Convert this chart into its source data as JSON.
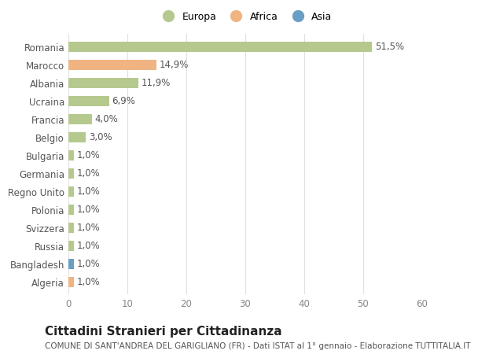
{
  "categories": [
    "Romania",
    "Marocco",
    "Albania",
    "Ucraina",
    "Francia",
    "Belgio",
    "Bulgaria",
    "Germania",
    "Regno Unito",
    "Polonia",
    "Svizzera",
    "Russia",
    "Bangladesh",
    "Algeria"
  ],
  "values": [
    51.5,
    14.9,
    11.9,
    6.9,
    4.0,
    3.0,
    1.0,
    1.0,
    1.0,
    1.0,
    1.0,
    1.0,
    1.0,
    1.0
  ],
  "labels": [
    "51,5%",
    "14,9%",
    "11,9%",
    "6,9%",
    "4,0%",
    "3,0%",
    "1,0%",
    "1,0%",
    "1,0%",
    "1,0%",
    "1,0%",
    "1,0%",
    "1,0%",
    "1,0%"
  ],
  "continents": [
    "Europa",
    "Africa",
    "Europa",
    "Europa",
    "Europa",
    "Europa",
    "Europa",
    "Europa",
    "Europa",
    "Europa",
    "Europa",
    "Europa",
    "Asia",
    "Africa"
  ],
  "colors": {
    "Europa": "#b5c98e",
    "Africa": "#f0b482",
    "Asia": "#6a9ec4"
  },
  "xlim": [
    0,
    60
  ],
  "xticks": [
    0,
    10,
    20,
    30,
    40,
    50,
    60
  ],
  "title": "Cittadini Stranieri per Cittadinanza",
  "subtitle": "COMUNE DI SANT'ANDREA DEL GARIGLIANO (FR) - Dati ISTAT al 1° gennaio - Elaborazione TUTTITALIA.IT",
  "background_color": "#ffffff",
  "grid_color": "#e0e0e0",
  "bar_height": 0.55,
  "label_fontsize": 8.5,
  "tick_fontsize": 8.5,
  "title_fontsize": 11,
  "subtitle_fontsize": 7.5
}
